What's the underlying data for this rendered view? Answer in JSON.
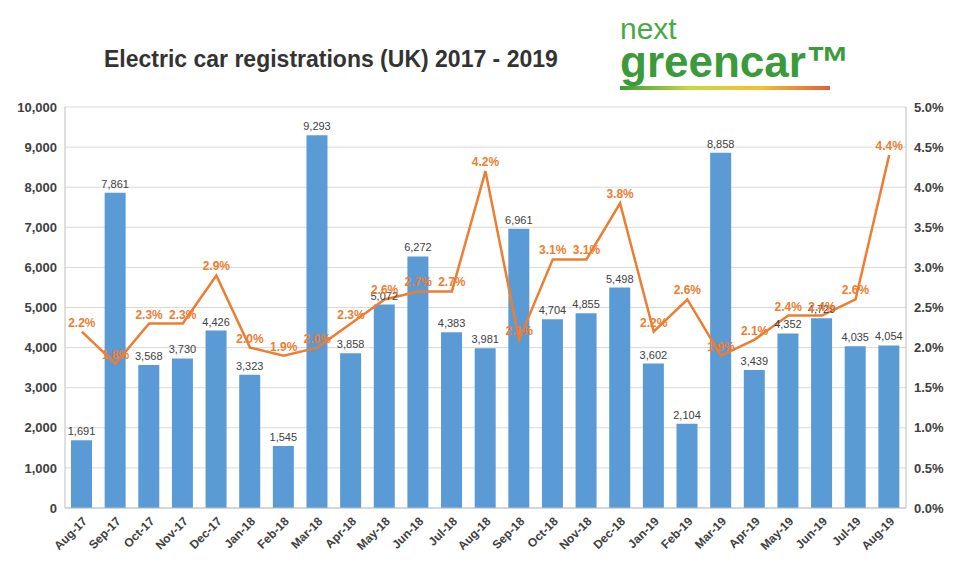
{
  "chart_data": {
    "type": "bar",
    "title": "Electric car registrations (UK) 2017 - 2019",
    "annotations": [
      "next",
      "greencar™"
    ],
    "categories": [
      "Aug-17",
      "Sep-17",
      "Oct-17",
      "Nov-17",
      "Dec-17",
      "Jan-18",
      "Feb-18",
      "Mar-18",
      "Apr-18",
      "May-18",
      "Jun-18",
      "Jul-18",
      "Aug-18",
      "Sep-18",
      "Oct-18",
      "Nov-18",
      "Dec-18",
      "Jan-19",
      "Feb-19",
      "Mar-19",
      "Apr-19",
      "May-19",
      "Jun-19",
      "Jul-19",
      "Aug-19"
    ],
    "series": [
      {
        "type": "bar",
        "color": "#5b9bd5",
        "values": [
          1691,
          7861,
          3568,
          3730,
          4426,
          3323,
          1545,
          9293,
          3858,
          5072,
          6272,
          4383,
          3981,
          6961,
          4704,
          4855,
          5498,
          3602,
          2104,
          8858,
          3439,
          4352,
          4729,
          4035,
          4054
        ],
        "value_labels": [
          "1,691",
          "7,861",
          "3,568",
          "3,730",
          "4,426",
          "3,323",
          "1,545",
          "9,293",
          "3,858",
          "5,072",
          "6,272",
          "4,383",
          "3,981",
          "6,961",
          "4,704",
          "4,855",
          "5,498",
          "3,602",
          "2,104",
          "8,858",
          "3,439",
          "4,352",
          "4,729",
          "4,035",
          "4,054"
        ]
      },
      {
        "type": "line",
        "axis": "y2",
        "color": "#ed7d31",
        "values": [
          2.2,
          1.8,
          2.3,
          2.3,
          2.9,
          2.0,
          1.9,
          2.0,
          2.3,
          2.6,
          2.7,
          2.7,
          4.2,
          2.1,
          3.1,
          3.1,
          3.8,
          2.2,
          2.6,
          1.9,
          2.1,
          2.4,
          2.4,
          2.6,
          4.4
        ],
        "value_labels": [
          "2.2%",
          "1.8%",
          "2.3%",
          "2.3%",
          "2.9%",
          "2.0%",
          "1.9%",
          "2.0%",
          "2.3%",
          "2.6%",
          "2.7%",
          "2.7%",
          "4.2%",
          "2.1%",
          "3.1%",
          "3.1%",
          "3.8%",
          "2.2%",
          "2.6%",
          "1.9%",
          "2.1%",
          "2.4%",
          "2.4%",
          "2.6%",
          "4.4%"
        ]
      }
    ],
    "ylim": [
      0,
      10000
    ],
    "yticks": [
      0,
      {
        "value": 1000,
        "label": "1,000"
      },
      {
        "value": 2000,
        "label": "2,000"
      },
      {
        "value": 3000,
        "label": "3,000"
      },
      {
        "value": 4000,
        "label": "4,000"
      },
      {
        "value": 5000,
        "label": "5,000"
      },
      {
        "value": 6000,
        "label": "6,000"
      },
      {
        "value": 7000,
        "label": "7,000"
      },
      {
        "value": 8000,
        "label": "8,000"
      },
      {
        "value": 9000,
        "label": "9,000"
      },
      {
        "value": 10000,
        "label": "10,000"
      }
    ],
    "y2lim": [
      0,
      5
    ],
    "y2ticks": [
      {
        "value": 0,
        "label": "0.0%"
      },
      {
        "value": 0.5,
        "label": "0.5%"
      },
      {
        "value": 1,
        "label": "1.0%"
      },
      {
        "value": 1.5,
        "label": "1.5%"
      },
      {
        "value": 2,
        "label": "2.0%"
      },
      {
        "value": 2.5,
        "label": "2.5%"
      },
      {
        "value": 3,
        "label": "3.0%"
      },
      {
        "value": 3.5,
        "label": "3.5%"
      },
      {
        "value": 4,
        "label": "4.0%"
      },
      {
        "value": 4.5,
        "label": "4.5%"
      },
      {
        "value": 5,
        "label": "5.0%"
      }
    ],
    "grid": true,
    "data_labels": true
  }
}
